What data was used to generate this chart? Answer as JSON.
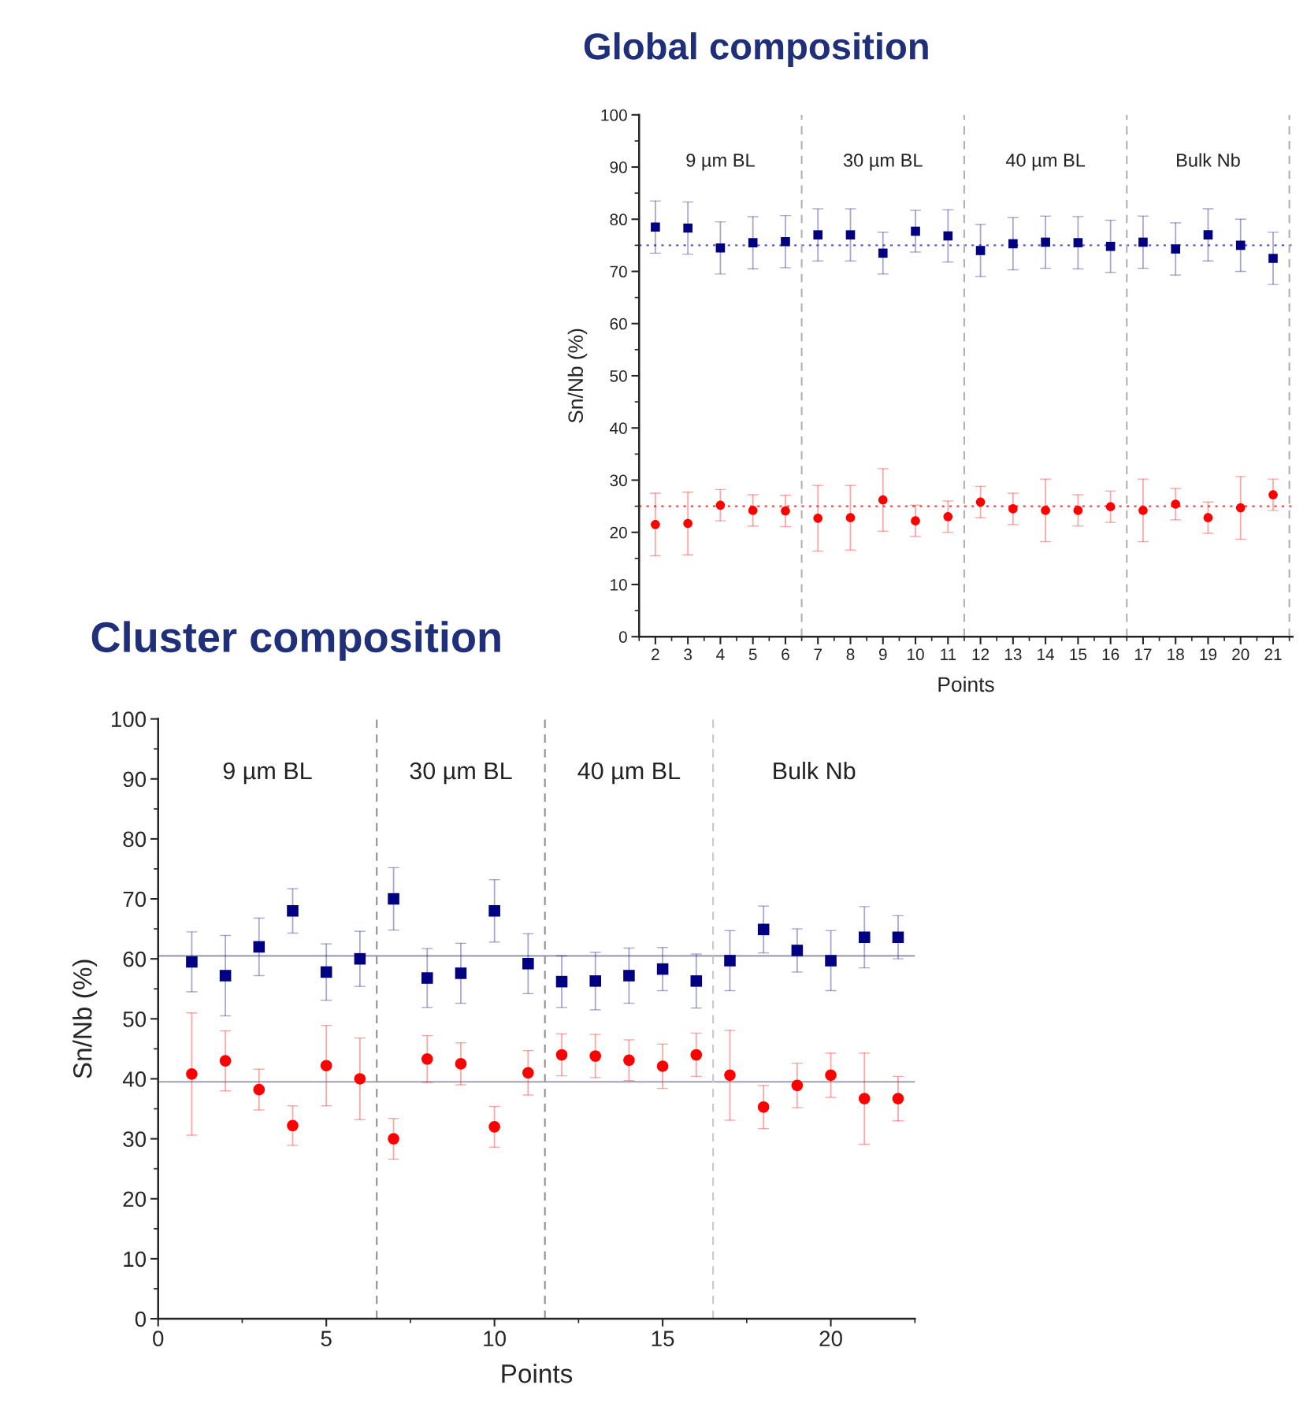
{
  "chart_data": [
    {
      "type": "scatter",
      "title": "Global composition",
      "xlabel": "Points",
      "ylabel": "Sn/Nb (%)",
      "x": [
        2,
        3,
        4,
        5,
        6,
        7,
        8,
        9,
        10,
        11,
        12,
        13,
        14,
        15,
        16,
        17,
        18,
        19,
        20,
        21
      ],
      "xlim": [
        1.5,
        21.6
      ],
      "xticks": [
        2,
        3,
        4,
        5,
        6,
        7,
        8,
        9,
        10,
        11,
        12,
        13,
        14,
        15,
        16,
        17,
        18,
        19,
        20,
        21
      ],
      "ylim": [
        0,
        100
      ],
      "yticks": [
        0,
        10,
        20,
        30,
        40,
        50,
        60,
        70,
        80,
        90,
        100
      ],
      "series": [
        {
          "color": "#000080",
          "marker": "square",
          "values": [
            78.5,
            78.3,
            74.5,
            75.5,
            75.7,
            77,
            77,
            73.5,
            77.7,
            76.8,
            74,
            75.3,
            75.6,
            75.5,
            74.8,
            75.6,
            74.3,
            77,
            75,
            72.5
          ],
          "errors": [
            5,
            5,
            5,
            5,
            5,
            5,
            5,
            4,
            4,
            5,
            5,
            5,
            5,
            5,
            5,
            5,
            5,
            5,
            5,
            5
          ]
        },
        {
          "color": "#ff0000",
          "marker": "circle",
          "values": [
            21.5,
            21.7,
            25.2,
            24.2,
            24.1,
            22.7,
            22.8,
            26.2,
            22.2,
            23,
            25.8,
            24.5,
            24.2,
            24.2,
            24.9,
            24.2,
            25.4,
            22.8,
            24.7,
            27.2
          ],
          "errors": [
            6,
            6,
            3,
            3,
            3,
            6.3,
            6.2,
            6,
            3,
            3,
            3,
            3,
            6,
            3,
            3,
            6,
            3,
            3,
            6,
            3
          ]
        }
      ],
      "ref_lines": [
        {
          "axis": "y",
          "value": 75,
          "color": "#5a5ad8",
          "line_style": "dotted"
        },
        {
          "axis": "y",
          "value": 25,
          "color": "#ff4040",
          "line_style": "dotted"
        },
        {
          "axis": "x",
          "value": 6.5,
          "color": "#b0b0b0",
          "line_style": "dashed"
        },
        {
          "axis": "x",
          "value": 11.5,
          "color": "#b0b0b0",
          "line_style": "dashed"
        },
        {
          "axis": "x",
          "value": 16.5,
          "color": "#b0b0b0",
          "line_style": "dashed"
        },
        {
          "axis": "x",
          "value": 21.5,
          "color": "#b0b0b0",
          "line_style": "dashed"
        }
      ],
      "annotations": [
        "9 µm BL",
        "30 µm BL",
        "40 µm BL",
        "Bulk Nb"
      ]
    },
    {
      "type": "scatter",
      "title": "Cluster composition",
      "xlabel": "Points",
      "ylabel": "Sn/Nb (%)",
      "x": [
        1,
        2,
        3,
        4,
        5,
        6,
        7,
        8,
        9,
        10,
        11,
        12,
        13,
        14,
        15,
        16,
        17,
        18,
        19,
        20,
        21,
        22
      ],
      "xlim": [
        0,
        22.5
      ],
      "xticks": [
        0,
        5,
        10,
        15,
        20
      ],
      "ylim": [
        0,
        100
      ],
      "yticks": [
        0,
        10,
        20,
        30,
        40,
        50,
        60,
        70,
        80,
        90,
        100
      ],
      "series": [
        {
          "color": "#000080",
          "marker": "square",
          "values": [
            59.5,
            57.2,
            62,
            68,
            57.8,
            60,
            70,
            56.8,
            57.6,
            68,
            59.2,
            56.2,
            56.3,
            57.2,
            58.3,
            56.3,
            59.7,
            64.9,
            61.4,
            59.7,
            63.6,
            63.6
          ],
          "errors": [
            5,
            6.7,
            4.8,
            3.7,
            4.7,
            4.6,
            5.2,
            4.9,
            5,
            5.2,
            5,
            4.3,
            4.8,
            4.6,
            3.6,
            4.5,
            5,
            3.9,
            3.6,
            5,
            5.1,
            3.6
          ]
        },
        {
          "color": "#ff0000",
          "marker": "circle",
          "values": [
            40.8,
            43,
            38.2,
            32.2,
            42.2,
            40,
            30,
            43.3,
            42.5,
            32,
            41,
            44,
            43.8,
            43.1,
            42.1,
            44,
            40.6,
            35.3,
            38.9,
            40.6,
            36.7,
            36.7
          ],
          "errors": [
            10.2,
            5,
            3.4,
            3.3,
            6.7,
            6.8,
            3.4,
            3.9,
            3.5,
            3.4,
            3.7,
            3.5,
            3.6,
            3.4,
            3.7,
            3.6,
            7.5,
            3.6,
            3.7,
            3.7,
            7.6,
            3.7
          ]
        }
      ],
      "ref_lines": [
        {
          "axis": "y",
          "value": 60.5,
          "color": "#a0a0b0",
          "line_style": "solid"
        },
        {
          "axis": "y",
          "value": 39.5,
          "color": "#a0a0b0",
          "line_style": "solid"
        },
        {
          "axis": "x",
          "value": 6.5,
          "color": "#909090",
          "line_style": "dashed"
        },
        {
          "axis": "x",
          "value": 11.5,
          "color": "#909090",
          "line_style": "dashed"
        },
        {
          "axis": "x",
          "value": 16.5,
          "color": "#c8c8c8",
          "line_style": "dashed"
        }
      ],
      "annotations": [
        "9 µm BL",
        "30 µm BL",
        "40 µm BL",
        "Bulk Nb"
      ]
    }
  ]
}
